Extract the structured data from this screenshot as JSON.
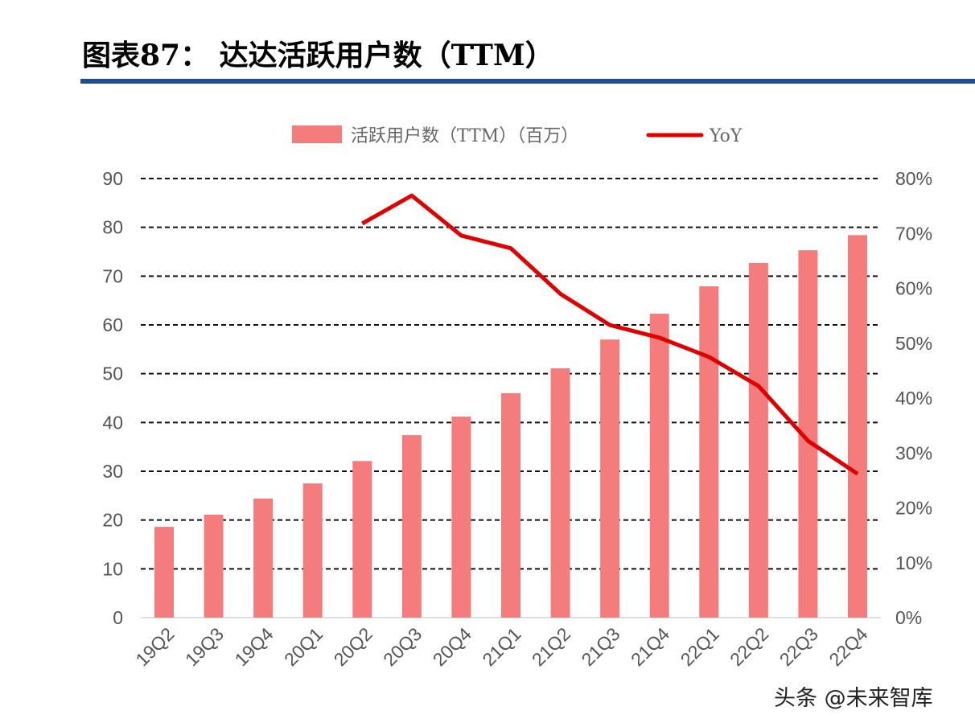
{
  "header": {
    "title": "图表87：  达达活跃用户数（TTM）"
  },
  "watermark": "头条 @未来智库",
  "chart_data": {
    "type": "bar",
    "title": "图表87：  达达活跃用户数（TTM）",
    "categories": [
      "19Q2",
      "19Q3",
      "19Q4",
      "20Q1",
      "20Q2",
      "20Q3",
      "20Q4",
      "21Q1",
      "21Q2",
      "21Q3",
      "21Q4",
      "22Q1",
      "22Q2",
      "22Q3",
      "22Q4"
    ],
    "series": [
      {
        "name": "活跃用户数（TTM）（百万）",
        "type": "bar",
        "axis": "left",
        "color": "#f47c7c",
        "values": [
          18.6,
          21.1,
          24.4,
          27.5,
          32.1,
          37.4,
          41.2,
          46.0,
          51.1,
          57.0,
          62.3,
          67.9,
          72.7,
          75.3,
          78.4
        ]
      },
      {
        "name": "YoY",
        "type": "line",
        "axis": "right",
        "color": "#e00000",
        "values": [
          null,
          null,
          null,
          null,
          71.8,
          76.9,
          69.6,
          67.3,
          59.0,
          53.3,
          51.0,
          47.5,
          42.2,
          32.2,
          26.2
        ]
      }
    ],
    "ylim": [
      0,
      90
    ],
    "yticks": [
      0,
      10,
      20,
      30,
      40,
      50,
      60,
      70,
      80,
      90
    ],
    "y2lim": [
      0,
      80
    ],
    "y2ticks": [
      "0%",
      "10%",
      "20%",
      "30%",
      "40%",
      "50%",
      "60%",
      "70%",
      "80%"
    ],
    "grid": "dashed horizontal",
    "legend": "top-center"
  }
}
